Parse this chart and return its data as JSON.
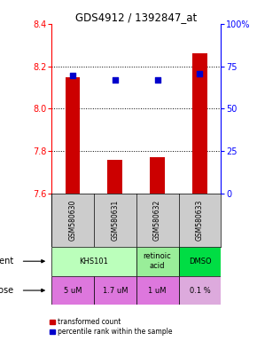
{
  "title": "GDS4912 / 1392847_at",
  "samples": [
    "GSM580630",
    "GSM580631",
    "GSM580632",
    "GSM580633"
  ],
  "bar_values": [
    8.15,
    7.76,
    7.77,
    8.26
  ],
  "bar_bottom": 7.6,
  "blue_dot_values": [
    8.155,
    8.135,
    8.135,
    8.165
  ],
  "ylim": [
    7.6,
    8.4
  ],
  "left_yticks": [
    7.6,
    7.8,
    8.0,
    8.2,
    8.4
  ],
  "right_ytick_labels": [
    "0",
    "25",
    "50",
    "75",
    "100%"
  ],
  "right_ytick_positions": [
    7.6,
    7.8,
    8.0,
    8.2,
    8.4
  ],
  "bar_color": "#cc0000",
  "dot_color": "#0000cc",
  "dose_row": [
    "5 uM",
    "1.7 uM",
    "1 uM",
    "0.1 %"
  ],
  "dose_colors": [
    "#dd77dd",
    "#dd77dd",
    "#dd77dd",
    "#ddaadd"
  ],
  "sample_bg_color": "#cccccc",
  "hline_positions": [
    7.8,
    8.0,
    8.2
  ],
  "legend_red_label": "transformed count",
  "legend_blue_label": "percentile rank within the sample",
  "agent_groups": [
    {
      "start": 0,
      "end": 2,
      "label": "KHS101",
      "color": "#bbffbb"
    },
    {
      "start": 2,
      "end": 3,
      "label": "retinoic\nacid",
      "color": "#99ee99"
    },
    {
      "start": 3,
      "end": 4,
      "label": "DMSO",
      "color": "#00dd44"
    }
  ]
}
